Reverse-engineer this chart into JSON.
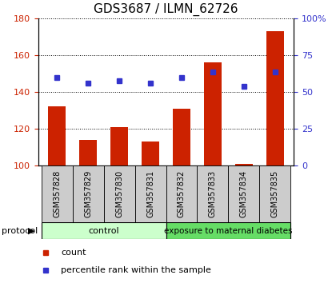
{
  "title": "GDS3687 / ILMN_62726",
  "categories": [
    "GSM357828",
    "GSM357829",
    "GSM357830",
    "GSM357831",
    "GSM357832",
    "GSM357833",
    "GSM357834",
    "GSM357835"
  ],
  "bar_values": [
    132,
    114,
    121,
    113,
    131,
    156,
    101,
    173
  ],
  "dot_values": [
    148,
    145,
    146,
    145,
    148,
    151,
    143,
    151
  ],
  "bar_color": "#cc2200",
  "dot_color": "#3333cc",
  "ylim_left": [
    100,
    180
  ],
  "ylim_right": [
    0,
    100
  ],
  "yticks_left": [
    100,
    120,
    140,
    160,
    180
  ],
  "yticks_right": [
    0,
    25,
    50,
    75,
    100
  ],
  "yticklabels_right": [
    "0",
    "25",
    "50",
    "75",
    "100%"
  ],
  "group1_label": "control",
  "group2_label": "exposure to maternal diabetes",
  "group1_color": "#ccffcc",
  "group2_color": "#66dd66",
  "protocol_label": "protocol",
  "legend_count": "count",
  "legend_percentile": "percentile rank within the sample",
  "title_fontsize": 11,
  "tick_label_fontsize": 7,
  "bar_width": 0.55,
  "xtick_bg_color": "#cccccc"
}
